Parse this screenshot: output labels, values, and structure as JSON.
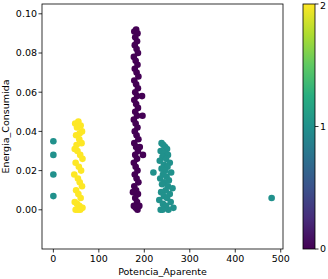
{
  "chart_data": {
    "type": "scatter",
    "x_label": "Potencia_Aparente",
    "y_label": "Energia_Consumida",
    "xlim": [
      -25,
      505
    ],
    "xticks": [
      0,
      100,
      200,
      300,
      400,
      500
    ],
    "ylim": [
      -0.02,
      0.105
    ],
    "yticks": [
      {
        "value": 0,
        "label": "0.00"
      },
      {
        "value": 0.02,
        "label": "0.02"
      },
      {
        "value": 0.04,
        "label": "0.04"
      },
      {
        "value": 0.06,
        "label": "0.06"
      },
      {
        "value": 0.08,
        "label": "0.08"
      },
      {
        "value": 0.1,
        "label": "0.10"
      }
    ],
    "colorbar_range": [
      0,
      2
    ],
    "colorbar_ticks": [
      0,
      1,
      2
    ],
    "marker": "circle",
    "x": [
      48,
      52,
      55,
      60,
      63,
      50,
      57,
      62,
      47,
      53,
      59,
      64,
      49,
      56,
      61,
      46,
      54,
      58,
      63,
      50,
      55,
      60,
      47,
      52,
      57,
      62,
      49,
      54,
      59,
      64,
      51,
      58,
      178,
      182,
      185,
      180,
      184,
      179,
      183,
      186,
      177,
      181,
      185,
      179,
      183,
      187,
      178,
      182,
      186,
      180,
      184,
      195,
      178,
      182,
      186,
      180,
      184,
      196,
      177,
      181,
      185,
      179,
      183,
      187,
      178,
      182,
      186,
      197,
      180,
      184,
      177,
      181,
      185,
      179,
      183,
      187,
      178,
      182,
      186,
      180,
      184,
      177,
      181,
      185,
      189,
      175,
      190,
      238,
      242,
      246,
      250,
      236,
      244,
      252,
      240,
      248,
      234,
      256,
      243,
      251,
      238,
      246,
      259,
      241,
      249,
      235,
      254,
      244,
      239,
      252,
      262,
      247,
      237,
      256,
      243,
      250,
      233,
      258,
      241,
      248,
      264,
      236,
      253,
      245,
      240,
      0,
      0,
      0,
      0,
      220,
      480
    ],
    "values": [
      0.044,
      0.042,
      0.045,
      0.043,
      0.04,
      0.038,
      0.036,
      0.034,
      0.031,
      0.03,
      0.028,
      0.026,
      0.024,
      0.022,
      0.02,
      0.018,
      0.016,
      0.014,
      0.012,
      0.01,
      0.008,
      0.006,
      0.004,
      0.003,
      0.002,
      0.001,
      0,
      0,
      0,
      0.001,
      0.033,
      0.039,
      0.091,
      0.092,
      0.09,
      0.088,
      0.086,
      0.084,
      0.082,
      0.08,
      0.078,
      0.076,
      0.074,
      0.072,
      0.07,
      0.068,
      0.066,
      0.064,
      0.062,
      0.06,
      0.058,
      0.058,
      0.056,
      0.054,
      0.052,
      0.05,
      0.048,
      0.048,
      0.046,
      0.044,
      0.042,
      0.04,
      0.038,
      0.036,
      0.034,
      0.032,
      0.03,
      0.028,
      0.028,
      0.026,
      0.024,
      0.022,
      0.02,
      0.018,
      0.016,
      0.014,
      0.012,
      0.01,
      0.008,
      0.006,
      0.004,
      0.002,
      0.001,
      0,
      0.002,
      0.009,
      0.032,
      0.034,
      0.033,
      0.032,
      0.031,
      0.03,
      0.029,
      0.028,
      0.027,
      0.026,
      0.025,
      0.024,
      0.023,
      0.022,
      0.021,
      0.02,
      0.019,
      0.018,
      0.017,
      0.016,
      0.015,
      0.014,
      0.013,
      0.012,
      0.011,
      0.01,
      0.009,
      0.008,
      0.007,
      0.006,
      0.005,
      0.004,
      0.003,
      0.002,
      0.001,
      0,
      0,
      0.001,
      0,
      0.035,
      0.028,
      0.018,
      0.007,
      0.019,
      0.006
    ],
    "cluster": [
      2,
      2,
      2,
      2,
      2,
      2,
      2,
      2,
      2,
      2,
      2,
      2,
      2,
      2,
      2,
      2,
      2,
      2,
      2,
      2,
      2,
      2,
      2,
      2,
      2,
      2,
      2,
      2,
      2,
      2,
      2,
      2,
      0,
      0,
      0,
      0,
      0,
      0,
      0,
      0,
      0,
      0,
      0,
      0,
      0,
      0,
      0,
      0,
      0,
      0,
      0,
      0,
      0,
      0,
      0,
      0,
      0,
      0,
      0,
      0,
      0,
      0,
      0,
      0,
      0,
      0,
      0,
      0,
      0,
      0,
      0,
      0,
      0,
      0,
      0,
      0,
      0,
      0,
      0,
      0,
      0,
      0,
      0,
      0,
      0,
      0,
      0,
      1,
      1,
      1,
      1,
      1,
      1,
      1,
      1,
      1,
      1,
      1,
      1,
      1,
      1,
      1,
      1,
      1,
      1,
      1,
      1,
      1,
      1,
      1,
      1,
      1,
      1,
      1,
      1,
      1,
      1,
      1,
      1,
      1,
      1,
      1,
      1,
      1,
      1,
      1,
      1,
      1,
      1,
      1,
      1
    ]
  }
}
